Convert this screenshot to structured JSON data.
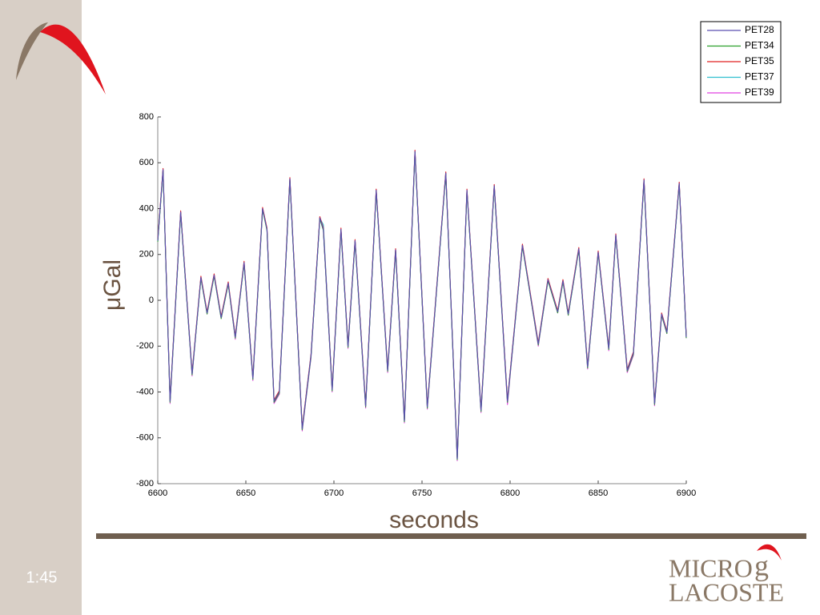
{
  "slide": {
    "time": "1:45",
    "logo": {
      "micro": "MICRO",
      "g": "g",
      "lacoste": "LACOSTE"
    }
  },
  "chart_data": {
    "type": "line",
    "y_label": "μGal",
    "x_label": "seconds",
    "x": [
      6600,
      6603,
      6607,
      6613,
      6619.5,
      6624.5,
      6628,
      6632,
      6636,
      6640,
      6644,
      6649,
      6654,
      6659.5,
      6662,
      6666,
      6669,
      6675,
      6682,
      6687,
      6692,
      6694,
      6699,
      6704,
      6708,
      6712,
      6718,
      6724,
      6730.5,
      6735,
      6740,
      6746,
      6753,
      6763.5,
      6770,
      6775.5,
      6783.5,
      6791,
      6798.5,
      6807,
      6816,
      6821.5,
      6827,
      6830,
      6833,
      6839,
      6844,
      6850,
      6856,
      6860,
      6866.5,
      6870,
      6876,
      6882,
      6886,
      6889,
      6896,
      6900
    ],
    "series": [
      {
        "name": "PET28",
        "color": "#5a4fb0",
        "values": [
          260,
          570,
          -440,
          385,
          -320,
          100,
          -55,
          110,
          -75,
          75,
          -160,
          165,
          -340,
          400,
          310,
          -440,
          -400,
          530,
          -560,
          -240,
          360,
          310,
          -390,
          310,
          -200,
          260,
          -460,
          480,
          -305,
          220,
          -525,
          650,
          -465,
          555,
          -690,
          480,
          -480,
          500,
          -440,
          240,
          -190,
          90,
          -50,
          85,
          -60,
          225,
          -290,
          210,
          -210,
          285,
          -305,
          -230,
          525,
          -450,
          -60,
          -140,
          510,
          -160
        ]
      },
      {
        "name": "PET34",
        "color": "#2ca02c",
        "values": [
          255,
          565,
          -445,
          380,
          -325,
          95,
          -60,
          105,
          -80,
          70,
          -165,
          160,
          -345,
          395,
          305,
          -445,
          -405,
          525,
          -565,
          -245,
          355,
          305,
          -395,
          305,
          -205,
          255,
          -465,
          475,
          -310,
          215,
          -530,
          645,
          -470,
          550,
          -695,
          475,
          -485,
          495,
          -445,
          235,
          -195,
          85,
          -55,
          80,
          -65,
          220,
          -295,
          205,
          -215,
          280,
          -310,
          -235,
          520,
          -455,
          -65,
          -145,
          505,
          -165
        ]
      },
      {
        "name": "PET35",
        "color": "#e02020",
        "values": [
          265,
          575,
          -435,
          390,
          -315,
          105,
          -50,
          115,
          -70,
          80,
          -155,
          170,
          -335,
          405,
          315,
          -435,
          -395,
          535,
          -555,
          -235,
          365,
          315,
          -385,
          315,
          -195,
          265,
          -455,
          485,
          -300,
          225,
          -520,
          655,
          -460,
          560,
          -685,
          485,
          -475,
          505,
          -435,
          245,
          -185,
          95,
          -45,
          90,
          -55,
          230,
          -285,
          215,
          -205,
          290,
          -300,
          -225,
          530,
          -445,
          -55,
          -135,
          515,
          -155
        ]
      },
      {
        "name": "PET37",
        "color": "#30c0d0",
        "values": [
          258,
          568,
          -442,
          383,
          -322,
          98,
          -57,
          108,
          -77,
          73,
          -162,
          163,
          -342,
          398,
          308,
          -442,
          -402,
          528,
          -562,
          -242,
          358,
          330,
          -392,
          308,
          -202,
          258,
          -462,
          478,
          -307,
          218,
          -527,
          648,
          -467,
          553,
          -692,
          478,
          -482,
          498,
          -442,
          238,
          -192,
          88,
          -52,
          83,
          -62,
          223,
          -292,
          208,
          -212,
          283,
          -307,
          -232,
          523,
          -452,
          -62,
          -142,
          508,
          -162
        ]
      },
      {
        "name": "PET39",
        "color": "#e040e0",
        "values": [
          262,
          572,
          -450,
          387,
          -330,
          102,
          -60,
          112,
          -80,
          77,
          -170,
          167,
          -350,
          402,
          312,
          -450,
          -410,
          532,
          -570,
          -250,
          362,
          312,
          -400,
          312,
          -210,
          262,
          -470,
          482,
          -315,
          222,
          -535,
          652,
          -475,
          557,
          -700,
          482,
          -490,
          502,
          -455,
          242,
          -200,
          92,
          -55,
          87,
          -65,
          227,
          -300,
          212,
          -220,
          287,
          -315,
          -240,
          527,
          -460,
          -65,
          -145,
          512,
          -165
        ]
      }
    ],
    "xlim": [
      6600,
      6900
    ],
    "xticks": [
      6600,
      6650,
      6700,
      6750,
      6800,
      6850,
      6900
    ],
    "ylim": [
      -800,
      800
    ],
    "yticks": [
      -800,
      -600,
      -400,
      -200,
      0,
      200,
      400,
      600,
      800
    ],
    "grid": false,
    "legend": "top-right"
  }
}
